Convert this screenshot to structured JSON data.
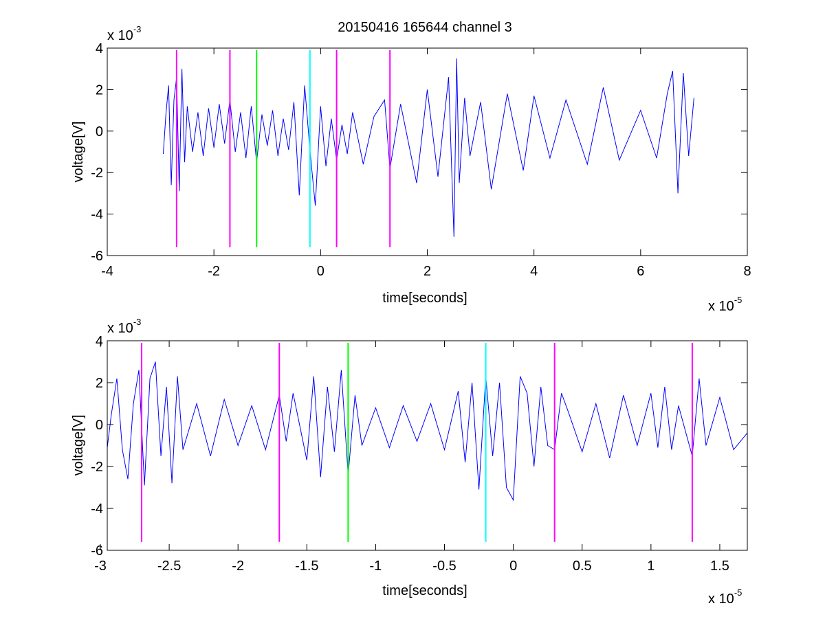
{
  "figure_title": "20150416 165644 channel 3",
  "chart_data": [
    {
      "type": "line",
      "title": "20150416 165644 channel 3",
      "xlabel": "time[seconds]",
      "ylabel": "voltage[V]",
      "x_exponent_label": "x 10",
      "x_exponent": "-5",
      "y_exponent_label": "x 10",
      "y_exponent": "-3",
      "xlim": [
        -4,
        8
      ],
      "ylim": [
        -6,
        4
      ],
      "xticks": [
        -4,
        -2,
        0,
        2,
        4,
        6,
        8
      ],
      "xtick_labels": [
        "-4",
        "-2",
        "0",
        "2",
        "4",
        "6",
        "8"
      ],
      "yticks": [
        4,
        2,
        0,
        -2,
        -4,
        -6
      ],
      "ytick_labels": [
        "4",
        "2",
        "0",
        "-2",
        "-4",
        "-6"
      ],
      "grid": false,
      "series": [
        {
          "color": "#0000ff",
          "x": [
            -2.95,
            -2.9,
            -2.85,
            -2.8,
            -2.75,
            -2.7,
            -2.65,
            -2.6,
            -2.55,
            -2.5,
            -2.4,
            -2.3,
            -2.2,
            -2.1,
            -2.0,
            -1.9,
            -1.8,
            -1.7,
            -1.6,
            -1.5,
            -1.4,
            -1.3,
            -1.2,
            -1.1,
            -1.0,
            -0.9,
            -0.8,
            -0.7,
            -0.6,
            -0.5,
            -0.4,
            -0.3,
            -0.2,
            -0.1,
            0.0,
            0.1,
            0.2,
            0.3,
            0.4,
            0.5,
            0.6,
            0.8,
            1.0,
            1.2,
            1.3,
            1.5,
            1.8,
            2.0,
            2.2,
            2.4,
            2.5,
            2.55,
            2.6,
            2.7,
            2.8,
            3.0,
            3.2,
            3.5,
            3.8,
            4.0,
            4.3,
            4.6,
            5.0,
            5.3,
            5.6,
            6.0,
            6.3,
            6.5,
            6.6,
            6.7,
            6.8,
            6.9,
            7.0
          ],
          "y": [
            -1.1,
            0.8,
            2.2,
            -2.6,
            1.5,
            2.6,
            -2.9,
            3.0,
            -1.5,
            1.2,
            -1.0,
            0.9,
            -1.2,
            1.1,
            -0.8,
            1.3,
            -0.6,
            1.5,
            -1.0,
            0.9,
            -1.3,
            1.2,
            -1.5,
            0.8,
            -0.7,
            1.0,
            -1.2,
            0.6,
            -0.9,
            1.4,
            -3.1,
            2.2,
            -0.9,
            -3.6,
            1.2,
            -1.7,
            0.6,
            -1.4,
            0.3,
            -1.1,
            0.9,
            -1.6,
            0.7,
            1.5,
            -1.8,
            1.3,
            -2.5,
            2.0,
            -2.2,
            2.6,
            -5.1,
            3.5,
            -2.5,
            1.6,
            -1.2,
            1.4,
            -2.8,
            1.8,
            -1.9,
            1.7,
            -1.3,
            1.5,
            -1.6,
            2.1,
            -1.4,
            1.0,
            -1.3,
            1.8,
            2.9,
            -3.0,
            2.8,
            -1.2,
            1.6
          ]
        }
      ],
      "markers": [
        {
          "x": -2.7,
          "color": "#ff00ff"
        },
        {
          "x": -1.7,
          "color": "#ff00ff"
        },
        {
          "x": -1.2,
          "color": "#00ff00"
        },
        {
          "x": -0.2,
          "color": "#00ffff"
        },
        {
          "x": 0.3,
          "color": "#ff00ff"
        },
        {
          "x": 1.3,
          "color": "#ff00ff"
        }
      ],
      "marker_range": [
        -5.6,
        3.9
      ]
    },
    {
      "type": "line",
      "title": "",
      "xlabel": "time[seconds]",
      "ylabel": "voltage[V]",
      "x_exponent_label": "x 10",
      "x_exponent": "-5",
      "y_exponent_label": "x 10",
      "y_exponent": "-3",
      "xlim": [
        -2.95,
        1.7
      ],
      "ylim": [
        -6,
        4
      ],
      "xticks": [
        -3,
        -2.5,
        -2,
        -1.5,
        -1,
        -0.5,
        0,
        0.5,
        1,
        1.5
      ],
      "xtick_labels": [
        "-3",
        "-2.5",
        "-2",
        "-1.5",
        "-1",
        "-0.5",
        "0",
        "0.5",
        "1",
        "1.5"
      ],
      "yticks": [
        4,
        2,
        0,
        -2,
        -4,
        -6
      ],
      "ytick_labels": [
        "4",
        "2",
        "0",
        "-2",
        "-4",
        "-6"
      ],
      "grid": false,
      "series": [
        {
          "color": "#0000ff",
          "x": [
            -2.95,
            -2.92,
            -2.88,
            -2.84,
            -2.8,
            -2.76,
            -2.72,
            -2.68,
            -2.64,
            -2.6,
            -2.56,
            -2.52,
            -2.48,
            -2.44,
            -2.4,
            -2.3,
            -2.2,
            -2.1,
            -2.0,
            -1.9,
            -1.8,
            -1.7,
            -1.65,
            -1.6,
            -1.5,
            -1.45,
            -1.4,
            -1.35,
            -1.3,
            -1.25,
            -1.2,
            -1.15,
            -1.1,
            -1.0,
            -0.9,
            -0.8,
            -0.7,
            -0.6,
            -0.5,
            -0.4,
            -0.35,
            -0.3,
            -0.25,
            -0.2,
            -0.15,
            -0.1,
            -0.05,
            0.0,
            0.05,
            0.1,
            0.15,
            0.2,
            0.25,
            0.3,
            0.35,
            0.4,
            0.5,
            0.6,
            0.7,
            0.8,
            0.9,
            1.0,
            1.05,
            1.1,
            1.15,
            1.2,
            1.3,
            1.35,
            1.4,
            1.5,
            1.6,
            1.7
          ],
          "y": [
            -1.1,
            0.5,
            2.2,
            -1.2,
            -2.6,
            1.0,
            2.6,
            -2.9,
            2.2,
            3.0,
            -1.5,
            1.8,
            -2.8,
            2.3,
            -1.2,
            1.0,
            -1.5,
            1.2,
            -1.0,
            0.9,
            -1.2,
            1.4,
            -0.8,
            1.5,
            -1.7,
            2.3,
            -2.5,
            1.8,
            -1.3,
            2.6,
            -2.4,
            1.4,
            -1.0,
            0.8,
            -1.1,
            0.9,
            -0.8,
            1.0,
            -1.2,
            1.6,
            -1.8,
            2.0,
            -3.1,
            2.3,
            -1.5,
            2.0,
            -3.0,
            -3.6,
            2.3,
            1.5,
            -2.0,
            1.8,
            -1.0,
            -1.2,
            1.5,
            0.6,
            -1.3,
            1.0,
            -1.6,
            1.4,
            -1.0,
            1.5,
            -1.1,
            1.8,
            -1.2,
            0.9,
            -1.5,
            2.2,
            -1.0,
            1.3,
            -1.2,
            -0.4
          ]
        }
      ],
      "markers": [
        {
          "x": -2.7,
          "color": "#ff00ff"
        },
        {
          "x": -1.7,
          "color": "#ff00ff"
        },
        {
          "x": -1.2,
          "color": "#00ff00"
        },
        {
          "x": -0.2,
          "color": "#00ffff"
        },
        {
          "x": 0.3,
          "color": "#ff00ff"
        },
        {
          "x": 1.3,
          "color": "#ff00ff"
        }
      ],
      "marker_range": [
        -5.6,
        3.9
      ]
    }
  ]
}
